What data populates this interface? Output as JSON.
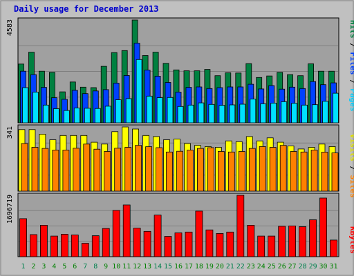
{
  "chart_data": {
    "type": "bar",
    "title": "Daily usage for December 2013",
    "categories": [
      "1",
      "2",
      "3",
      "4",
      "5",
      "6",
      "7",
      "8",
      "9",
      "10",
      "11",
      "12",
      "13",
      "14",
      "15",
      "16",
      "17",
      "18",
      "19",
      "20",
      "21",
      "22",
      "23",
      "24",
      "25",
      "26",
      "27",
      "28",
      "29",
      "30",
      "31"
    ],
    "weekend_days": [
      "1",
      "7",
      "8",
      "14",
      "15",
      "21",
      "22",
      "28",
      "29"
    ],
    "panels": [
      {
        "id": "hits_files_pages",
        "max_label": "4583",
        "ylim": [
          0,
          4583
        ],
        "series": [
          {
            "name": "Hits",
            "color": "#008040",
            "values": [
              2620,
              3150,
              2300,
              2250,
              1380,
              1820,
              1590,
              1570,
              2520,
              3130,
              3220,
              4583,
              3000,
              3150,
              2650,
              2360,
              2320,
              2320,
              2380,
              2100,
              2230,
              2220,
              2640,
              2020,
              2090,
              2250,
              2150,
              2100,
              2630,
              2300,
              2300
            ]
          },
          {
            "name": "Files",
            "color": "#0040ff",
            "values": [
              2300,
              2150,
              1580,
              1120,
              1050,
              1450,
              1300,
              1420,
              1480,
              1770,
              2110,
              3550,
              2350,
              2080,
              1800,
              1370,
              1580,
              1600,
              1530,
              1570,
              1600,
              1600,
              1720,
              1510,
              1660,
              1500,
              1590,
              1530,
              1840,
              1700,
              1780
            ]
          },
          {
            "name": "Pages",
            "color": "#00e0ff",
            "values": [
              1570,
              1370,
              790,
              630,
              550,
              660,
              650,
              640,
              740,
              1030,
              1080,
              2820,
              1190,
              1120,
              1130,
              730,
              790,
              890,
              820,
              780,
              800,
              830,
              1060,
              850,
              880,
              940,
              870,
              790,
              810,
              960,
              1320
            ]
          }
        ]
      },
      {
        "id": "visits_sites",
        "max_label": "341",
        "ylim": [
          0,
          341
        ],
        "series": [
          {
            "name": "Visits",
            "color": "#ffff00",
            "values": [
              327,
              327,
              303,
              273,
              296,
              296,
              296,
              260,
              250,
              316,
              341,
              330,
              296,
              290,
              273,
              277,
              253,
              243,
              237,
              233,
              267,
              263,
              290,
              267,
              283,
              260,
              240,
              224,
              233,
              250,
              237
            ]
          },
          {
            "name": "Sites",
            "color": "#ff8000",
            "values": [
              253,
              233,
              227,
              218,
              218,
              228,
              250,
              223,
              211,
              228,
              233,
              243,
              236,
              231,
              208,
              212,
              218,
              227,
              231,
              211,
              208,
              211,
              227,
              237,
              233,
              243,
              211,
              208,
              218,
              207,
              203
            ]
          }
        ]
      },
      {
        "id": "kbytes",
        "max_label": "1696719",
        "ylim": [
          0,
          1696719
        ],
        "series": [
          {
            "name": "KBytes",
            "color": "#ff0000",
            "values": [
              1050000,
              610000,
              870000,
              570000,
              620000,
              600000,
              370000,
              580000,
              780000,
              1280000,
              1430000,
              790000,
              700000,
              1150000,
              560000,
              660000,
              680000,
              1260000,
              740000,
              640000,
              680000,
              1696719,
              870000,
              570000,
              570000,
              840000,
              850000,
              830000,
              1020000,
              1620000,
              460000
            ]
          }
        ]
      }
    ],
    "legend_placement": "right",
    "grid": true
  },
  "colors": {
    "background": "#c0c0c0",
    "plot_background": "#a0a0a0",
    "gridline": "#7f7f7f",
    "title": "#0000cc",
    "weekday_label": "#008000",
    "weekend_label": "#00804d"
  }
}
